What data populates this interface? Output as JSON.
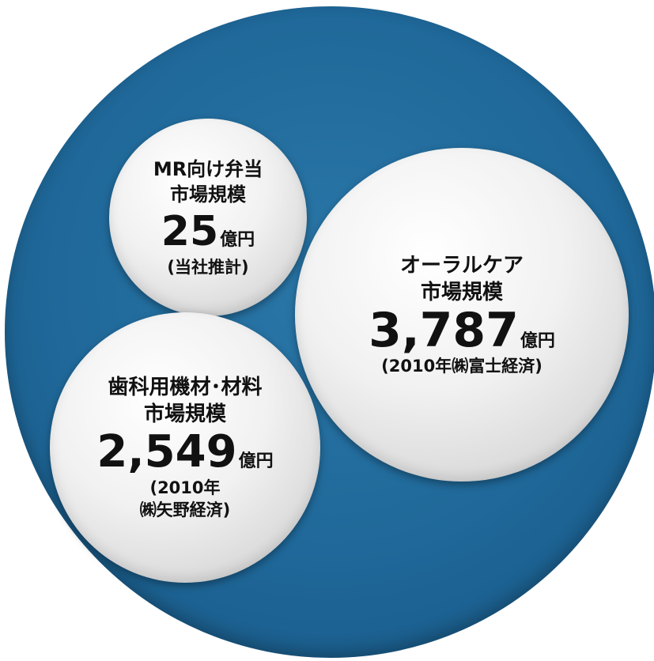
{
  "bubbles": {
    "mr": {
      "title_line1": "MR向け弁当",
      "title_line2": "市場規模",
      "value": "25",
      "unit": "億円",
      "source_line1": "(当社推計)"
    },
    "oral": {
      "title_line1": "オーラルケア",
      "title_line2": "市場規模",
      "value": "3,787",
      "unit": "億円",
      "source_line1": "(2010年㈱富士経済)"
    },
    "dental": {
      "title_line1": "歯科用機材･材料",
      "title_line2": "市場規模",
      "value": "2,549",
      "unit": "億円",
      "source_line1": "(2010年",
      "source_line2": "㈱矢野経済)"
    }
  },
  "colors": {
    "outer_circle": "#1f6899",
    "inner_bubble": "#ececec",
    "text": "#111111"
  }
}
